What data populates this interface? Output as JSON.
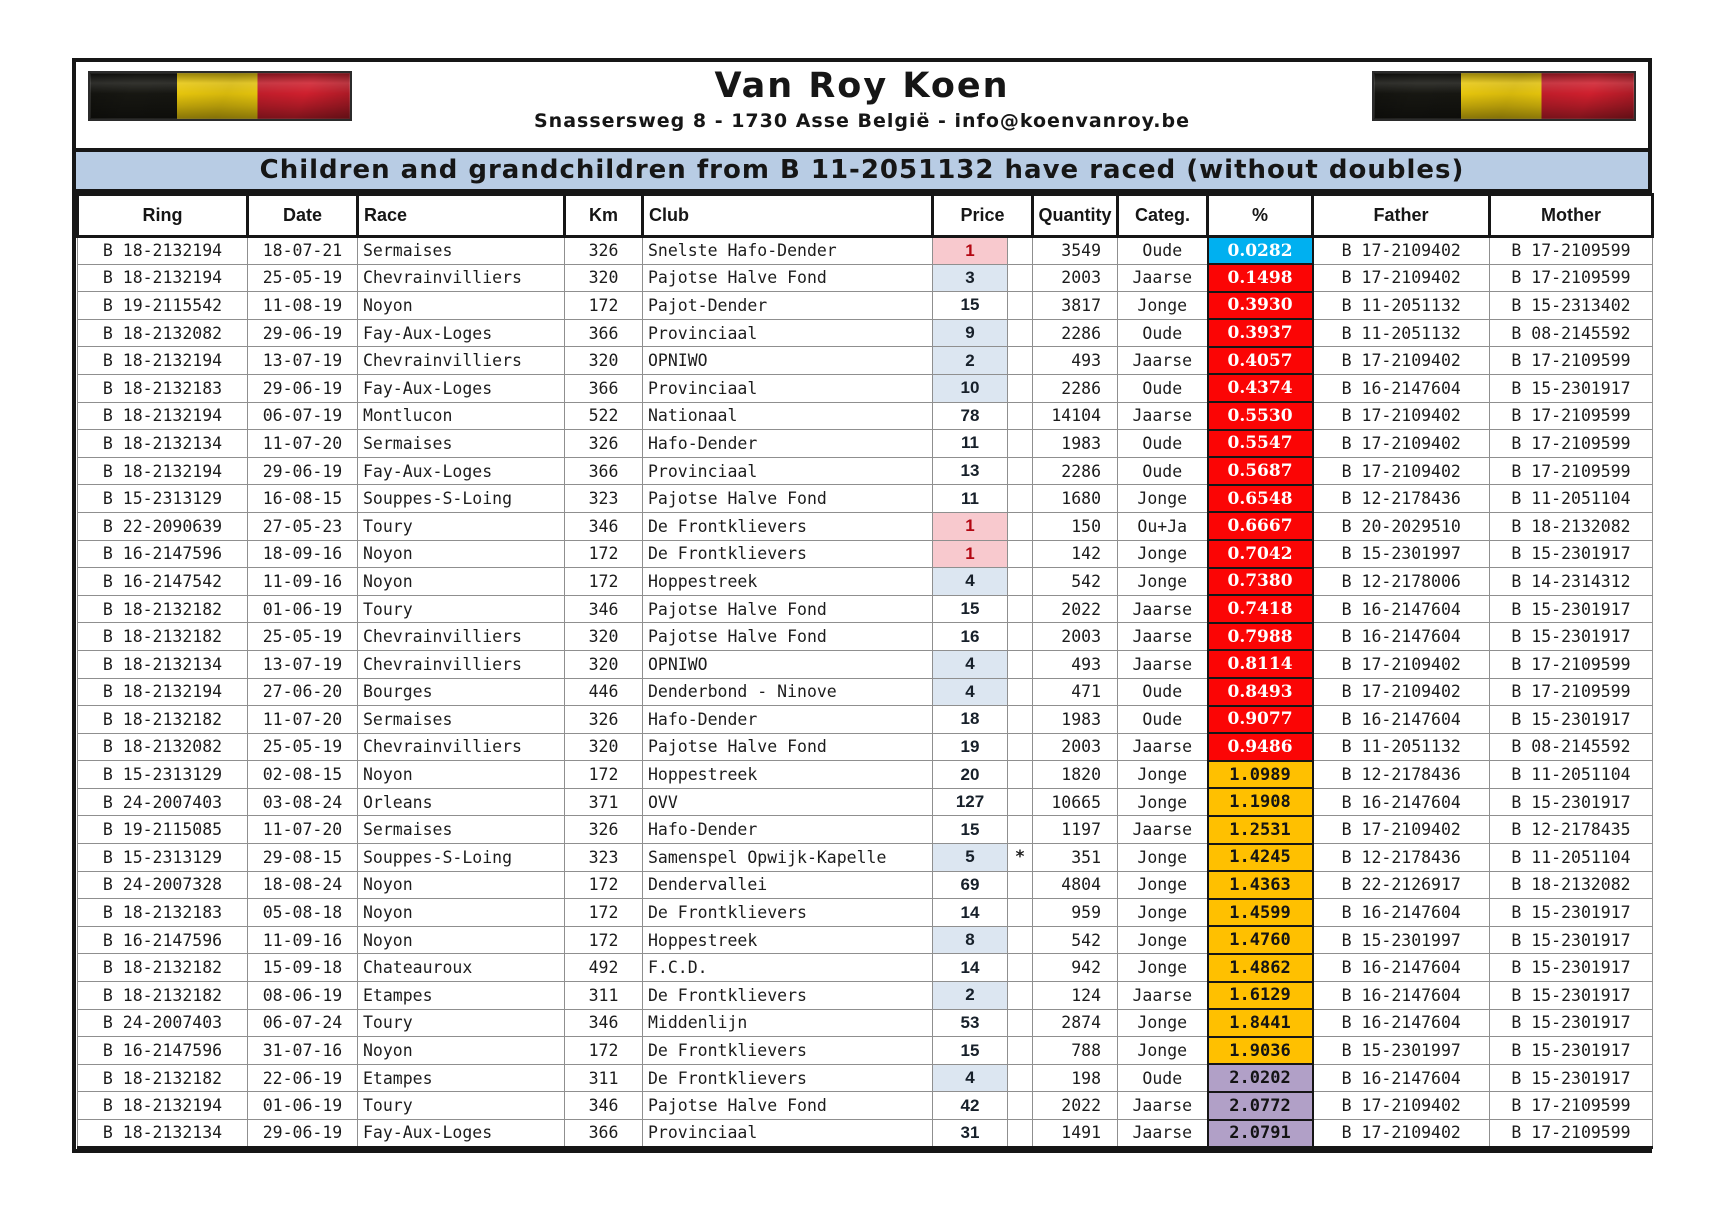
{
  "page": {
    "title": "Van Roy Koen",
    "subtitle": "Snassersweg 8 - 1730 Asse België - info@koenvanroy.be",
    "banner": "Children and grandchildren from B 11-2051132 have raced (without doubles)",
    "flag_icon": "belgian-flag"
  },
  "colors": {
    "banner_bg": "#b8cce4",
    "price_first": "#f8c9ce",
    "price_low": "#dce6f1",
    "pct_cyan": "#00b0f0",
    "pct_red": "#fb0505",
    "pct_orange": "#ffc000",
    "pct_purple": "#b1a0c7"
  },
  "table": {
    "headers": [
      "Ring",
      "Date",
      "Race",
      "Km",
      "Club",
      "Price",
      "Quantity",
      "Categ.",
      "%",
      "Father",
      "Mother"
    ],
    "rows": [
      {
        "ring": "B 18-2132194",
        "date": "18-07-21",
        "race": "Sermaises",
        "km": "326",
        "club": "Snelste Hafo-Dender",
        "price": "1",
        "star": "",
        "quantity": "3549",
        "categ": "Oude",
        "pct": "0.0282",
        "pct_style": "cyan",
        "price_style": "pink",
        "father": "B 17-2109402",
        "mother": "B 17-2109599"
      },
      {
        "ring": "B 18-2132194",
        "date": "25-05-19",
        "race": "Chevrainvilliers",
        "km": "320",
        "club": "Pajotse Halve Fond",
        "price": "3",
        "star": "",
        "quantity": "2003",
        "categ": "Jaarse",
        "pct": "0.1498",
        "pct_style": "red",
        "price_style": "blue",
        "father": "B 17-2109402",
        "mother": "B 17-2109599"
      },
      {
        "ring": "B 19-2115542",
        "date": "11-08-19",
        "race": "Noyon",
        "km": "172",
        "club": "Pajot-Dender",
        "price": "15",
        "star": "",
        "quantity": "3817",
        "categ": "Jonge",
        "pct": "0.3930",
        "pct_style": "red",
        "price_style": "white",
        "father": "B 11-2051132",
        "mother": "B 15-2313402"
      },
      {
        "ring": "B 18-2132082",
        "date": "29-06-19",
        "race": "Fay-Aux-Loges",
        "km": "366",
        "club": "Provinciaal",
        "price": "9",
        "star": "",
        "quantity": "2286",
        "categ": "Oude",
        "pct": "0.3937",
        "pct_style": "red",
        "price_style": "blue",
        "father": "B 11-2051132",
        "mother": "B 08-2145592"
      },
      {
        "ring": "B 18-2132194",
        "date": "13-07-19",
        "race": "Chevrainvilliers",
        "km": "320",
        "club": "OPNIWO",
        "price": "2",
        "star": "",
        "quantity": "493",
        "categ": "Jaarse",
        "pct": "0.4057",
        "pct_style": "red",
        "price_style": "blue",
        "father": "B 17-2109402",
        "mother": "B 17-2109599"
      },
      {
        "ring": "B 18-2132183",
        "date": "29-06-19",
        "race": "Fay-Aux-Loges",
        "km": "366",
        "club": "Provinciaal",
        "price": "10",
        "star": "",
        "quantity": "2286",
        "categ": "Oude",
        "pct": "0.4374",
        "pct_style": "red",
        "price_style": "blue",
        "father": "B 16-2147604",
        "mother": "B 15-2301917"
      },
      {
        "ring": "B 18-2132194",
        "date": "06-07-19",
        "race": "Montlucon",
        "km": "522",
        "club": "Nationaal",
        "price": "78",
        "star": "",
        "quantity": "14104",
        "categ": "Jaarse",
        "pct": "0.5530",
        "pct_style": "red",
        "price_style": "white",
        "father": "B 17-2109402",
        "mother": "B 17-2109599"
      },
      {
        "ring": "B 18-2132134",
        "date": "11-07-20",
        "race": "Sermaises",
        "km": "326",
        "club": "Hafo-Dender",
        "price": "11",
        "star": "",
        "quantity": "1983",
        "categ": "Oude",
        "pct": "0.5547",
        "pct_style": "red",
        "price_style": "white",
        "father": "B 17-2109402",
        "mother": "B 17-2109599"
      },
      {
        "ring": "B 18-2132194",
        "date": "29-06-19",
        "race": "Fay-Aux-Loges",
        "km": "366",
        "club": "Provinciaal",
        "price": "13",
        "star": "",
        "quantity": "2286",
        "categ": "Oude",
        "pct": "0.5687",
        "pct_style": "red",
        "price_style": "white",
        "father": "B 17-2109402",
        "mother": "B 17-2109599"
      },
      {
        "ring": "B 15-2313129",
        "date": "16-08-15",
        "race": "Souppes-S-Loing",
        "km": "323",
        "club": "Pajotse Halve Fond",
        "price": "11",
        "star": "",
        "quantity": "1680",
        "categ": "Jonge",
        "pct": "0.6548",
        "pct_style": "red",
        "price_style": "white",
        "father": "B 12-2178436",
        "mother": "B 11-2051104"
      },
      {
        "ring": "B 22-2090639",
        "date": "27-05-23",
        "race": "Toury",
        "km": "346",
        "club": "De Frontklievers",
        "price": "1",
        "star": "",
        "quantity": "150",
        "categ": "Ou+Ja",
        "pct": "0.6667",
        "pct_style": "red",
        "price_style": "pink",
        "father": "B 20-2029510",
        "mother": "B 18-2132082"
      },
      {
        "ring": "B 16-2147596",
        "date": "18-09-16",
        "race": "Noyon",
        "km": "172",
        "club": "De Frontklievers",
        "price": "1",
        "star": "",
        "quantity": "142",
        "categ": "Jonge",
        "pct": "0.7042",
        "pct_style": "red",
        "price_style": "pink",
        "father": "B 15-2301997",
        "mother": "B 15-2301917"
      },
      {
        "ring": "B 16-2147542",
        "date": "11-09-16",
        "race": "Noyon",
        "km": "172",
        "club": "Hoppestreek",
        "price": "4",
        "star": "",
        "quantity": "542",
        "categ": "Jonge",
        "pct": "0.7380",
        "pct_style": "red",
        "price_style": "blue",
        "father": "B 12-2178006",
        "mother": "B 14-2314312"
      },
      {
        "ring": "B 18-2132182",
        "date": "01-06-19",
        "race": "Toury",
        "km": "346",
        "club": "Pajotse Halve Fond",
        "price": "15",
        "star": "",
        "quantity": "2022",
        "categ": "Jaarse",
        "pct": "0.7418",
        "pct_style": "red",
        "price_style": "white",
        "father": "B 16-2147604",
        "mother": "B 15-2301917"
      },
      {
        "ring": "B 18-2132182",
        "date": "25-05-19",
        "race": "Chevrainvilliers",
        "km": "320",
        "club": "Pajotse Halve Fond",
        "price": "16",
        "star": "",
        "quantity": "2003",
        "categ": "Jaarse",
        "pct": "0.7988",
        "pct_style": "red",
        "price_style": "white",
        "father": "B 16-2147604",
        "mother": "B 15-2301917"
      },
      {
        "ring": "B 18-2132134",
        "date": "13-07-19",
        "race": "Chevrainvilliers",
        "km": "320",
        "club": "OPNIWO",
        "price": "4",
        "star": "",
        "quantity": "493",
        "categ": "Jaarse",
        "pct": "0.8114",
        "pct_style": "red",
        "price_style": "blue",
        "father": "B 17-2109402",
        "mother": "B 17-2109599"
      },
      {
        "ring": "B 18-2132194",
        "date": "27-06-20",
        "race": "Bourges",
        "km": "446",
        "club": "Denderbond - Ninove",
        "price": "4",
        "star": "",
        "quantity": "471",
        "categ": "Oude",
        "pct": "0.8493",
        "pct_style": "red",
        "price_style": "blue",
        "father": "B 17-2109402",
        "mother": "B 17-2109599"
      },
      {
        "ring": "B 18-2132182",
        "date": "11-07-20",
        "race": "Sermaises",
        "km": "326",
        "club": "Hafo-Dender",
        "price": "18",
        "star": "",
        "quantity": "1983",
        "categ": "Oude",
        "pct": "0.9077",
        "pct_style": "red",
        "price_style": "white",
        "father": "B 16-2147604",
        "mother": "B 15-2301917"
      },
      {
        "ring": "B 18-2132082",
        "date": "25-05-19",
        "race": "Chevrainvilliers",
        "km": "320",
        "club": "Pajotse Halve Fond",
        "price": "19",
        "star": "",
        "quantity": "2003",
        "categ": "Jaarse",
        "pct": "0.9486",
        "pct_style": "red",
        "price_style": "white",
        "father": "B 11-2051132",
        "mother": "B 08-2145592"
      },
      {
        "ring": "B 15-2313129",
        "date": "02-08-15",
        "race": "Noyon",
        "km": "172",
        "club": "Hoppestreek",
        "price": "20",
        "star": "",
        "quantity": "1820",
        "categ": "Jonge",
        "pct": "1.0989",
        "pct_style": "orange",
        "price_style": "white",
        "father": "B 12-2178436",
        "mother": "B 11-2051104"
      },
      {
        "ring": "B 24-2007403",
        "date": "03-08-24",
        "race": "Orleans",
        "km": "371",
        "club": "OVV",
        "price": "127",
        "star": "",
        "quantity": "10665",
        "categ": "Jonge",
        "pct": "1.1908",
        "pct_style": "orange",
        "price_style": "white",
        "father": "B 16-2147604",
        "mother": "B 15-2301917"
      },
      {
        "ring": "B 19-2115085",
        "date": "11-07-20",
        "race": "Sermaises",
        "km": "326",
        "club": "Hafo-Dender",
        "price": "15",
        "star": "",
        "quantity": "1197",
        "categ": "Jaarse",
        "pct": "1.2531",
        "pct_style": "orange",
        "price_style": "white",
        "father": "B 17-2109402",
        "mother": "B 12-2178435"
      },
      {
        "ring": "B 15-2313129",
        "date": "29-08-15",
        "race": "Souppes-S-Loing",
        "km": "323",
        "club": "Samenspel Opwijk-Kapelle",
        "price": "5",
        "star": "*",
        "quantity": "351",
        "categ": "Jonge",
        "pct": "1.4245",
        "pct_style": "orange",
        "price_style": "blue",
        "father": "B 12-2178436",
        "mother": "B 11-2051104"
      },
      {
        "ring": "B 24-2007328",
        "date": "18-08-24",
        "race": "Noyon",
        "km": "172",
        "club": "Dendervallei",
        "price": "69",
        "star": "",
        "quantity": "4804",
        "categ": "Jonge",
        "pct": "1.4363",
        "pct_style": "orange",
        "price_style": "white",
        "father": "B 22-2126917",
        "mother": "B 18-2132082"
      },
      {
        "ring": "B 18-2132183",
        "date": "05-08-18",
        "race": "Noyon",
        "km": "172",
        "club": "De Frontklievers",
        "price": "14",
        "star": "",
        "quantity": "959",
        "categ": "Jonge",
        "pct": "1.4599",
        "pct_style": "orange",
        "price_style": "white",
        "father": "B 16-2147604",
        "mother": "B 15-2301917"
      },
      {
        "ring": "B 16-2147596",
        "date": "11-09-16",
        "race": "Noyon",
        "km": "172",
        "club": "Hoppestreek",
        "price": "8",
        "star": "",
        "quantity": "542",
        "categ": "Jonge",
        "pct": "1.4760",
        "pct_style": "orange",
        "price_style": "blue",
        "father": "B 15-2301997",
        "mother": "B 15-2301917"
      },
      {
        "ring": "B 18-2132182",
        "date": "15-09-18",
        "race": "Chateauroux",
        "km": "492",
        "club": "F.C.D.",
        "price": "14",
        "star": "",
        "quantity": "942",
        "categ": "Jonge",
        "pct": "1.4862",
        "pct_style": "orange",
        "price_style": "white",
        "father": "B 16-2147604",
        "mother": "B 15-2301917"
      },
      {
        "ring": "B 18-2132182",
        "date": "08-06-19",
        "race": "Etampes",
        "km": "311",
        "club": "De Frontklievers",
        "price": "2",
        "star": "",
        "quantity": "124",
        "categ": "Jaarse",
        "pct": "1.6129",
        "pct_style": "orange",
        "price_style": "blue",
        "father": "B 16-2147604",
        "mother": "B 15-2301917"
      },
      {
        "ring": "B 24-2007403",
        "date": "06-07-24",
        "race": "Toury",
        "km": "346",
        "club": "Middenlijn",
        "price": "53",
        "star": "",
        "quantity": "2874",
        "categ": "Jonge",
        "pct": "1.8441",
        "pct_style": "orange",
        "price_style": "white",
        "father": "B 16-2147604",
        "mother": "B 15-2301917"
      },
      {
        "ring": "B 16-2147596",
        "date": "31-07-16",
        "race": "Noyon",
        "km": "172",
        "club": "De Frontklievers",
        "price": "15",
        "star": "",
        "quantity": "788",
        "categ": "Jonge",
        "pct": "1.9036",
        "pct_style": "orange",
        "price_style": "white",
        "father": "B 15-2301997",
        "mother": "B 15-2301917"
      },
      {
        "ring": "B 18-2132182",
        "date": "22-06-19",
        "race": "Etampes",
        "km": "311",
        "club": "De Frontklievers",
        "price": "4",
        "star": "",
        "quantity": "198",
        "categ": "Oude",
        "pct": "2.0202",
        "pct_style": "purple",
        "price_style": "blue",
        "father": "B 16-2147604",
        "mother": "B 15-2301917"
      },
      {
        "ring": "B 18-2132194",
        "date": "01-06-19",
        "race": "Toury",
        "km": "346",
        "club": "Pajotse Halve Fond",
        "price": "42",
        "star": "",
        "quantity": "2022",
        "categ": "Jaarse",
        "pct": "2.0772",
        "pct_style": "purple",
        "price_style": "white",
        "father": "B 17-2109402",
        "mother": "B 17-2109599"
      },
      {
        "ring": "B 18-2132134",
        "date": "29-06-19",
        "race": "Fay-Aux-Loges",
        "km": "366",
        "club": "Provinciaal",
        "price": "31",
        "star": "",
        "quantity": "1491",
        "categ": "Jaarse",
        "pct": "2.0791",
        "pct_style": "purple",
        "price_style": "white",
        "father": "B 17-2109402",
        "mother": "B 17-2109599"
      }
    ]
  }
}
